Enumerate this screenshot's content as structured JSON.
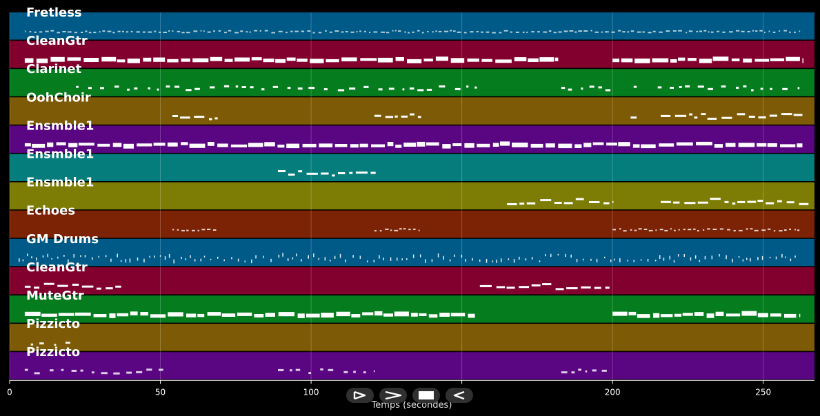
{
  "chart_data": {
    "type": "piano-roll",
    "xlabel": "Temps (secondes)",
    "xlim": [
      0,
      267
    ],
    "x_ticks": [
      0,
      50,
      100,
      150,
      200,
      250
    ],
    "grid": true,
    "tracks": [
      {
        "name": "Fretless",
        "color": "#005a87",
        "pattern": "dense",
        "segments": [
          [
            5,
            262
          ]
        ],
        "note_alpha": 0.7
      },
      {
        "name": "CleanGtr",
        "color": "#82002d",
        "pattern": "blocks",
        "segments": [
          [
            5,
            182
          ],
          [
            200,
            263
          ]
        ],
        "note_alpha": 1.0
      },
      {
        "name": "Clarinet",
        "color": "#057d1e",
        "pattern": "sparse",
        "segments": [
          [
            22,
            155
          ],
          [
            183,
            200
          ],
          [
            207,
            208
          ],
          [
            215,
            262
          ]
        ],
        "note_alpha": 1.0
      },
      {
        "name": "OohChoir",
        "color": "#7d5a05",
        "pattern": "phrase",
        "segments": [
          [
            54,
            69
          ],
          [
            121,
            137
          ],
          [
            206,
            208
          ],
          [
            216,
            263
          ]
        ],
        "note_alpha": 1.0
      },
      {
        "name": "Ensmble1",
        "color": "#5a0582",
        "pattern": "blocks",
        "segments": [
          [
            5,
            263
          ]
        ],
        "note_alpha": 1.0
      },
      {
        "name": "Ensmble1",
        "color": "#057d7d",
        "pattern": "phrase",
        "segments": [
          [
            89,
            122
          ]
        ],
        "note_alpha": 1.0
      },
      {
        "name": "Ensmble1",
        "color": "#7d7d05",
        "pattern": "phrase",
        "segments": [
          [
            165,
            200
          ],
          [
            216,
            265
          ]
        ],
        "note_alpha": 1.0
      },
      {
        "name": "Echoes",
        "color": "#7d2305",
        "pattern": "dense",
        "segments": [
          [
            54,
            69
          ],
          [
            121,
            137
          ],
          [
            200,
            262
          ]
        ],
        "note_alpha": 0.8
      },
      {
        "name": "GM Drums",
        "color": "#005a87",
        "pattern": "drums",
        "segments": [
          [
            3,
            262
          ]
        ],
        "note_alpha": 0.9
      },
      {
        "name": "CleanGtr",
        "color": "#82002d",
        "pattern": "phrase",
        "segments": [
          [
            5,
            37
          ],
          [
            156,
            199
          ]
        ],
        "note_alpha": 1.0
      },
      {
        "name": "MuteGtr",
        "color": "#057d1e",
        "pattern": "blocks",
        "segments": [
          [
            5,
            155
          ],
          [
            200,
            262
          ]
        ],
        "note_alpha": 1.0
      },
      {
        "name": "Pizzicto",
        "color": "#7d5a05",
        "pattern": "sparse",
        "segments": [
          [
            7,
            21
          ]
        ],
        "note_alpha": 0.9
      },
      {
        "name": "Pizzicto",
        "color": "#5a0582",
        "pattern": "sparse",
        "segments": [
          [
            5,
            51
          ],
          [
            89,
            121
          ],
          [
            183,
            200
          ]
        ],
        "note_alpha": 0.8
      }
    ]
  },
  "transport": [
    {
      "id": "play",
      "icon": "play-icon"
    },
    {
      "id": "forward",
      "icon": "forward-icon"
    },
    {
      "id": "stop",
      "icon": "stop-icon"
    },
    {
      "id": "rewind",
      "icon": "rewind-icon"
    }
  ]
}
